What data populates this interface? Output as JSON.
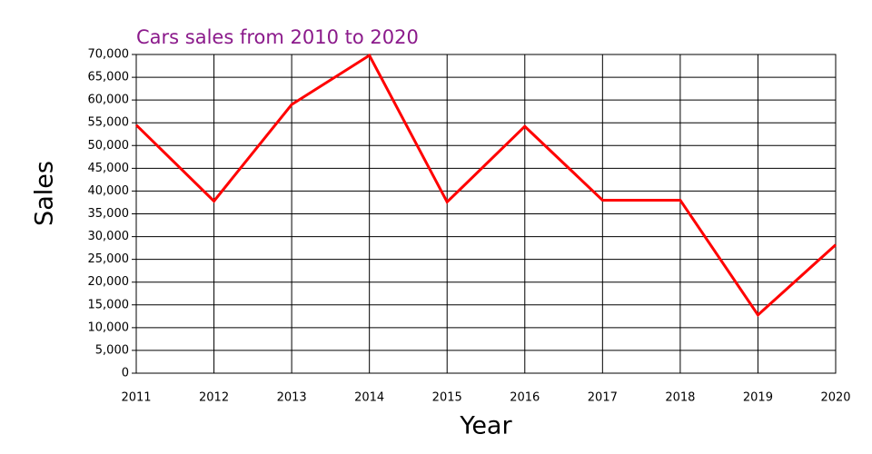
{
  "chart_data": {
    "type": "line",
    "title": "Cars sales from 2010 to 2020",
    "x_label": "Year",
    "y_label": "Sales",
    "x": [
      2011,
      2012,
      2013,
      2014,
      2015,
      2016,
      2017,
      2018,
      2019,
      2020
    ],
    "values": [
      54500,
      37800,
      59000,
      69800,
      37600,
      54200,
      38000,
      38000,
      12800,
      28200
    ],
    "color": "#ff0000",
    "xlim": [
      2011,
      2020
    ],
    "xticks": [
      2011,
      2012,
      2013,
      2014,
      2015,
      2016,
      2017,
      2018,
      2019,
      2020
    ],
    "ylim": [
      0,
      70000
    ],
    "yticks": [
      0,
      {
        "value": 5000,
        "label": "5,000"
      },
      {
        "value": 10000,
        "label": "10,000"
      },
      {
        "value": 15000,
        "label": "15,000"
      },
      {
        "value": 20000,
        "label": "20,000"
      },
      {
        "value": 25000,
        "label": "25,000"
      },
      {
        "value": 30000,
        "label": "30,000"
      },
      {
        "value": 35000,
        "label": "35,000"
      },
      {
        "value": 40000,
        "label": "40,000"
      },
      {
        "value": 45000,
        "label": "45,000"
      },
      {
        "value": 50000,
        "label": "50,000"
      },
      {
        "value": 55000,
        "label": "55,000"
      },
      {
        "value": 60000,
        "label": "60,000"
      },
      {
        "value": 65000,
        "label": "65,000"
      },
      {
        "value": 70000,
        "label": "70,000"
      }
    ],
    "grid": true
  }
}
